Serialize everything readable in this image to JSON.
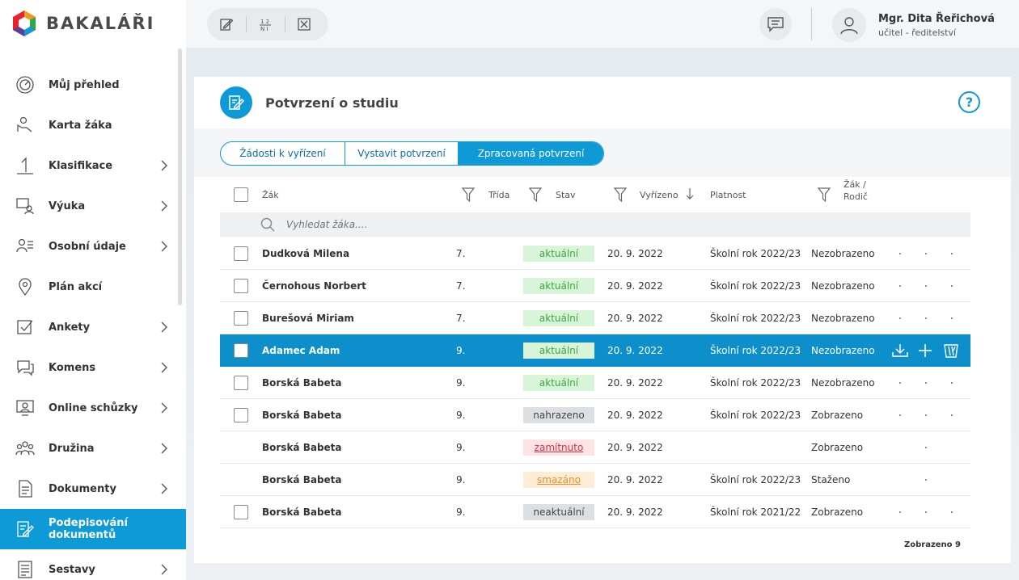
{
  "app": {
    "logo_text": "BAKALÁŘI"
  },
  "sidebar": {
    "items": [
      {
        "label": "Můj přehled",
        "icon": "dashboard-icon",
        "chevron": false
      },
      {
        "label": "Karta žáka",
        "icon": "student-card-icon",
        "chevron": false
      },
      {
        "label": "Klasifikace",
        "icon": "grade-icon",
        "chevron": true
      },
      {
        "label": "Výuka",
        "icon": "teaching-icon",
        "chevron": true
      },
      {
        "label": "Osobní údaje",
        "icon": "personal-data-icon",
        "chevron": true
      },
      {
        "label": "Plán akcí",
        "icon": "map-pin-icon",
        "chevron": false
      },
      {
        "label": "Ankety",
        "icon": "survey-icon",
        "chevron": true
      },
      {
        "label": "Komens",
        "icon": "chat-icon",
        "chevron": true
      },
      {
        "label": "Online schůzky",
        "icon": "video-meeting-icon",
        "chevron": true
      },
      {
        "label": "Družina",
        "icon": "group-icon",
        "chevron": true
      },
      {
        "label": "Dokumenty",
        "icon": "document-icon",
        "chevron": true
      },
      {
        "label": "Podepisování dokumentů",
        "icon": "sign-document-icon",
        "chevron": false,
        "active": true
      },
      {
        "label": "Sestavy",
        "icon": "report-icon",
        "chevron": true
      }
    ]
  },
  "topbar": {
    "tools": [
      "edit-icon",
      "fraction-icon",
      "close-box-icon"
    ],
    "user_name": "Mgr. Dita Řeřichová",
    "user_role": "učitel - ředitelství"
  },
  "page": {
    "title": "Potvrzení o studiu",
    "tabs": [
      {
        "label": "Žádosti k vyřízení",
        "active": false
      },
      {
        "label": "Vystavit potvrzení",
        "active": false
      },
      {
        "label": "Zpracovaná potvrzení",
        "active": true
      }
    ],
    "columns": {
      "student": "Žák",
      "class": "Třída",
      "status": "Stav",
      "resolved": "Vyřízeno",
      "validity": "Platnost",
      "student_parent_1": "Žák /",
      "student_parent_2": "Rodič"
    },
    "search_placeholder": "Vyhledat žáka....",
    "rows": [
      {
        "name": "Dudková Milena",
        "class": "7.",
        "status": "aktuální",
        "status_kind": "current",
        "date": "20. 9. 2022",
        "validity": "Školní rok 2022/23",
        "visibility": "Nezobrazeno",
        "checkbox": true,
        "dots": 3
      },
      {
        "name": "Černohous Norbert",
        "class": "7.",
        "status": "aktuální",
        "status_kind": "current",
        "date": "20. 9. 2022",
        "validity": "Školní rok 2022/23",
        "visibility": "Nezobrazeno",
        "checkbox": true,
        "dots": 3
      },
      {
        "name": "Burešová Miriam",
        "class": "7.",
        "status": "aktuální",
        "status_kind": "current",
        "date": "20. 9. 2022",
        "validity": "Školní rok 2022/23",
        "visibility": "Nezobrazeno",
        "checkbox": true,
        "dots": 3
      },
      {
        "name": "Adamec Adam",
        "class": "9.",
        "status": "aktuální",
        "status_kind": "current",
        "date": "20. 9. 2022",
        "validity": "Školní rok 2022/23",
        "visibility": "Nezobrazeno",
        "checkbox": true,
        "selected": true,
        "dots": 3
      },
      {
        "name": "Borská Babeta",
        "class": "9.",
        "status": "aktuální",
        "status_kind": "current",
        "date": "20. 9. 2022",
        "validity": "Školní rok 2022/23",
        "visibility": "Nezobrazeno",
        "checkbox": true,
        "dots": 3
      },
      {
        "name": "Borská Babeta",
        "class": "9.",
        "status": "nahrazeno",
        "status_kind": "replaced",
        "date": "20. 9. 2022",
        "validity": "Školní rok 2022/23",
        "visibility": "Zobrazeno",
        "checkbox": true,
        "dots": 3
      },
      {
        "name": "Borská Babeta",
        "class": "9.",
        "status": "zamítnuto",
        "status_kind": "rejected",
        "date": "20. 9. 2022",
        "validity": "",
        "visibility": "Zobrazeno",
        "checkbox": false,
        "dots": 1
      },
      {
        "name": "Borská Babeta",
        "class": "9.",
        "status": "smazáno",
        "status_kind": "deleted",
        "date": "20. 9. 2022",
        "validity": "Školní rok 2022/23",
        "visibility": "Staženo",
        "checkbox": false,
        "dots": 1
      },
      {
        "name": "Borská Babeta",
        "class": "9.",
        "status": "neaktuální",
        "status_kind": "outdated",
        "date": "20. 9. 2022",
        "validity": "Školní rok 2021/22",
        "visibility": "Zobrazeno",
        "checkbox": true,
        "dots": 3
      }
    ],
    "footer": "Zobrazeno 9"
  },
  "colors": {
    "accent": "#0d9ad7",
    "current_bg": "#d9f5d9",
    "current_fg": "#3aa53a",
    "replaced_bg": "#dde0e3",
    "rejected_bg": "#fde3e3",
    "rejected_fg": "#d9304a",
    "deleted_bg": "#fdecd6",
    "deleted_fg": "#e6912a",
    "outdated_bg": "#dde0e3"
  }
}
